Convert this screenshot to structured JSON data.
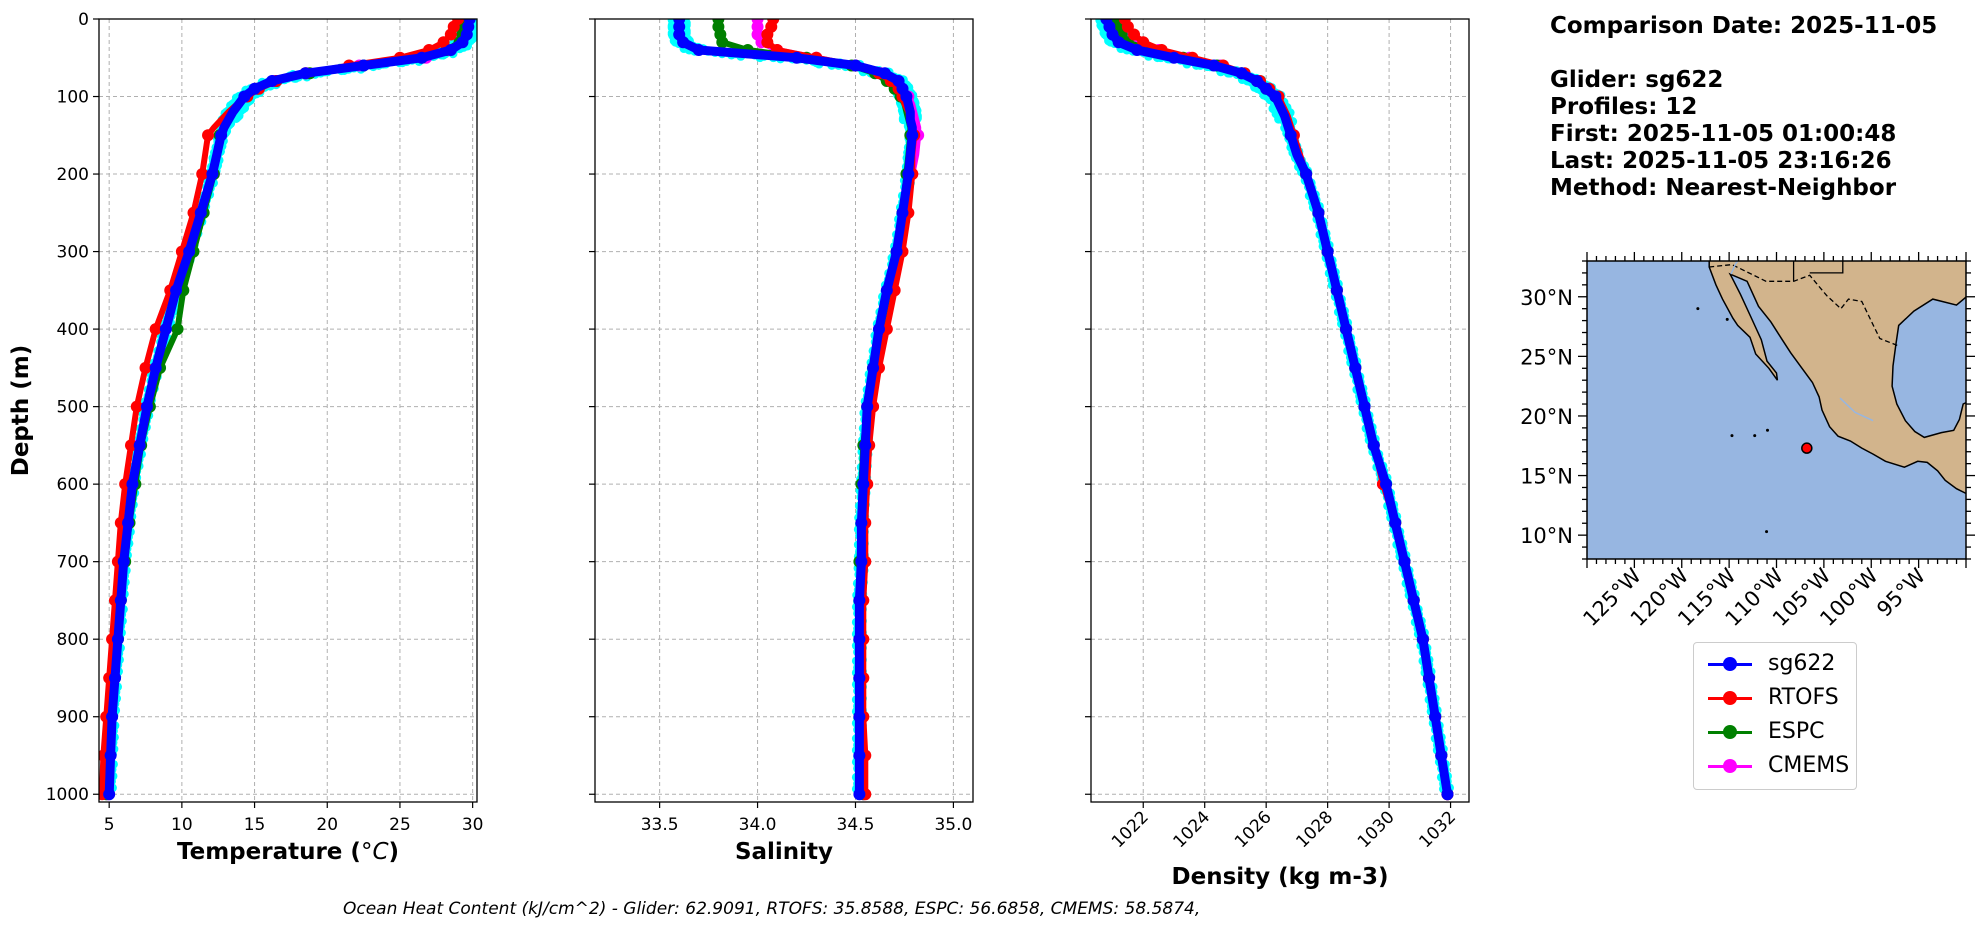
{
  "colors": {
    "sg622": "#0000ff",
    "RTOFS": "#ff0000",
    "ESPC": "#008000",
    "CMEMS": "#ff00ff",
    "glider_raw": "#00ffff",
    "ocean": "#97b6e1",
    "land": "#d2b48c"
  },
  "info": {
    "comparison": "Comparison Date: 2025-11-05",
    "glider": "Glider: sg622",
    "profiles": "Profiles: 12",
    "first": "First: 2025-11-05 01:00:48",
    "last": "Last: 2025-11-05 23:16:26",
    "method": "Method: Nearest-Neighbor"
  },
  "legend": [
    {
      "name": "sg622",
      "color": "#0000ff"
    },
    {
      "name": "RTOFS",
      "color": "#ff0000"
    },
    {
      "name": "ESPC",
      "color": "#008000"
    },
    {
      "name": "CMEMS",
      "color": "#ff00ff"
    }
  ],
  "footer": "Ocean Heat Content (kJ/cm^2) - Glider: 62.9091,  RTOFS: 35.8588,  ESPC: 56.6858,  CMEMS: 58.5874,",
  "chart_data": [
    {
      "type": "line",
      "xlabel": "Temperature",
      "xlabel_unit": "°C",
      "ylabel": "Depth (m)",
      "xlim": [
        4.3,
        30.3
      ],
      "ylim": [
        1010,
        0
      ],
      "xticks": [
        5,
        10,
        15,
        20,
        25,
        30
      ],
      "yticks": [
        0,
        100,
        200,
        300,
        400,
        500,
        600,
        700,
        800,
        900,
        1000
      ],
      "grid": true,
      "series": [
        {
          "name": "sg622",
          "depth": [
            0,
            10,
            20,
            30,
            40,
            50,
            60,
            70,
            80,
            90,
            100,
            110,
            120,
            130,
            140,
            150,
            175,
            200,
            250,
            300,
            350,
            400,
            450,
            500,
            550,
            600,
            650,
            700,
            750,
            800,
            850,
            900,
            950,
            1000
          ],
          "values": [
            29.8,
            29.7,
            29.6,
            29.3,
            28.5,
            26.5,
            22.5,
            18.5,
            16.2,
            15.0,
            14.3,
            13.9,
            13.5,
            13.2,
            12.9,
            12.7,
            12.4,
            12.1,
            11.3,
            10.5,
            9.6,
            8.9,
            8.2,
            7.6,
            7.1,
            6.6,
            6.3,
            6.0,
            5.8,
            5.6,
            5.4,
            5.2,
            5.1,
            5.0
          ]
        },
        {
          "name": "RTOFS",
          "depth": [
            0,
            10,
            20,
            30,
            40,
            50,
            60,
            70,
            80,
            90,
            100,
            110,
            120,
            130,
            140,
            150,
            175,
            200,
            250,
            300,
            350,
            400,
            450,
            500,
            550,
            600,
            650,
            700,
            750,
            800,
            850,
            900,
            950,
            1000
          ],
          "values": [
            29.0,
            28.7,
            28.5,
            28.0,
            27.0,
            25.0,
            21.5,
            18.5,
            16.5,
            15.3,
            14.5,
            13.8,
            13.2,
            12.7,
            12.2,
            11.8,
            11.6,
            11.4,
            10.8,
            10.0,
            9.2,
            8.2,
            7.5,
            6.9,
            6.5,
            6.1,
            5.8,
            5.6,
            5.4,
            5.2,
            5.0,
            4.8,
            4.6,
            4.5
          ]
        },
        {
          "name": "ESPC",
          "depth": [
            0,
            10,
            20,
            30,
            40,
            50,
            60,
            70,
            80,
            90,
            100,
            110,
            120,
            130,
            140,
            150,
            175,
            200,
            250,
            300,
            350,
            400,
            450,
            500,
            550,
            600,
            650,
            700,
            750,
            800,
            850,
            900,
            950,
            1000
          ],
          "values": [
            29.5,
            29.4,
            29.3,
            29.1,
            28.2,
            26.5,
            22.5,
            18.8,
            16.5,
            15.2,
            14.4,
            13.9,
            13.5,
            13.1,
            12.8,
            12.6,
            12.4,
            12.2,
            11.5,
            10.8,
            10.1,
            9.7,
            8.5,
            7.8,
            7.2,
            6.8,
            6.4,
            6.1,
            5.8,
            5.6,
            5.4,
            5.2,
            5.0,
            4.8
          ]
        },
        {
          "name": "CMEMS",
          "depth": [
            0,
            10,
            20,
            30,
            40,
            50,
            60,
            70,
            80,
            90,
            100,
            110,
            120,
            130,
            140,
            150,
            175,
            200,
            250,
            300,
            350,
            400,
            450,
            500,
            550,
            600,
            650,
            700,
            750,
            800,
            850,
            900,
            950,
            1000
          ],
          "values": [
            29.6,
            29.5,
            29.4,
            29.2,
            28.4,
            26.8,
            22.2,
            18.6,
            16.3,
            15.1,
            14.4,
            13.9,
            13.5,
            13.2,
            12.9,
            12.7,
            12.5,
            12.2,
            11.3,
            10.5,
            9.6,
            8.9,
            8.2,
            7.6,
            7.0,
            6.6,
            6.2,
            5.9,
            5.7,
            5.5,
            5.3,
            5.1,
            5.0,
            4.9
          ]
        }
      ]
    },
    {
      "type": "line",
      "xlabel": "Salinity",
      "xlim": [
        33.17,
        35.1
      ],
      "ylim": [
        1010,
        0
      ],
      "xticks": [
        33.5,
        34.0,
        34.5,
        35.0
      ],
      "xtick_labels": [
        "33.5",
        "34.0",
        "34.5",
        "35.0"
      ],
      "yticks": [
        0,
        100,
        200,
        300,
        400,
        500,
        600,
        700,
        800,
        900,
        1000
      ],
      "grid": true,
      "series": [
        {
          "name": "sg622",
          "depth": [
            0,
            10,
            20,
            30,
            40,
            50,
            60,
            70,
            80,
            90,
            100,
            110,
            120,
            130,
            140,
            150,
            175,
            200,
            250,
            300,
            350,
            400,
            450,
            500,
            550,
            600,
            650,
            700,
            750,
            800,
            850,
            900,
            950,
            1000
          ],
          "values": [
            33.6,
            33.6,
            33.6,
            33.62,
            33.7,
            34.2,
            34.5,
            34.65,
            34.72,
            34.74,
            34.76,
            34.77,
            34.78,
            34.78,
            34.79,
            34.79,
            34.78,
            34.77,
            34.74,
            34.71,
            34.66,
            34.62,
            34.59,
            34.56,
            34.55,
            34.54,
            34.53,
            34.53,
            34.52,
            34.52,
            34.52,
            34.52,
            34.52,
            34.52
          ]
        },
        {
          "name": "RTOFS",
          "depth": [
            0,
            10,
            20,
            30,
            40,
            50,
            60,
            70,
            80,
            90,
            100,
            110,
            120,
            130,
            140,
            150,
            175,
            200,
            250,
            300,
            350,
            400,
            450,
            500,
            550,
            600,
            650,
            700,
            750,
            800,
            850,
            900,
            950,
            1000
          ],
          "values": [
            34.08,
            34.07,
            34.05,
            34.05,
            34.1,
            34.3,
            34.5,
            34.62,
            34.68,
            34.72,
            34.74,
            34.75,
            34.77,
            34.78,
            34.79,
            34.8,
            34.79,
            34.79,
            34.77,
            34.74,
            34.7,
            34.66,
            34.62,
            34.59,
            34.57,
            34.56,
            34.55,
            34.55,
            34.54,
            34.54,
            34.54,
            34.54,
            34.55,
            34.55
          ]
        },
        {
          "name": "ESPC",
          "depth": [
            0,
            10,
            20,
            30,
            40,
            50,
            60,
            70,
            80,
            90,
            100,
            110,
            120,
            130,
            140,
            150,
            175,
            200,
            250,
            300,
            350,
            400,
            450,
            500,
            550,
            600,
            650,
            700,
            750,
            800,
            850,
            900,
            950,
            1000
          ],
          "values": [
            33.8,
            33.8,
            33.81,
            33.82,
            33.95,
            34.25,
            34.48,
            34.6,
            34.66,
            34.7,
            34.73,
            34.75,
            34.76,
            34.77,
            34.78,
            34.78,
            34.77,
            34.76,
            34.74,
            34.71,
            34.67,
            34.63,
            34.59,
            34.56,
            34.54,
            34.53,
            34.53,
            34.52,
            34.52,
            34.52,
            34.52,
            34.52,
            34.53,
            34.54
          ]
        },
        {
          "name": "CMEMS",
          "depth": [
            0,
            10,
            20,
            30,
            40,
            50,
            60,
            70,
            80,
            90,
            100,
            110,
            120,
            130,
            140,
            150,
            175,
            200,
            250,
            300,
            350,
            400,
            450,
            500,
            550,
            600,
            650,
            700,
            750,
            800,
            850,
            900,
            950,
            1000
          ],
          "values": [
            34.0,
            34.0,
            34.0,
            34.02,
            34.1,
            34.3,
            34.5,
            34.63,
            34.7,
            34.74,
            34.77,
            34.79,
            34.8,
            34.81,
            34.82,
            34.82,
            34.81,
            34.79,
            34.76,
            34.72,
            34.68,
            34.64,
            34.61,
            34.58,
            34.56,
            34.55,
            34.54,
            34.54,
            34.53,
            34.53,
            34.53,
            34.53,
            34.54,
            34.54
          ]
        }
      ]
    },
    {
      "type": "line",
      "xlabel": "Density (kg m-3)",
      "xlim": [
        1020.3,
        1032.6
      ],
      "ylim": [
        1010,
        0
      ],
      "xticks": [
        1022,
        1024,
        1026,
        1028,
        1030,
        1032
      ],
      "yticks": [
        0,
        100,
        200,
        300,
        400,
        500,
        600,
        700,
        800,
        900,
        1000
      ],
      "grid": true,
      "series": [
        {
          "name": "sg622",
          "depth": [
            0,
            10,
            20,
            30,
            40,
            50,
            60,
            70,
            80,
            90,
            100,
            125,
            150,
            175,
            200,
            250,
            300,
            350,
            400,
            450,
            500,
            550,
            600,
            650,
            700,
            750,
            800,
            850,
            900,
            950,
            1000
          ],
          "values": [
            1020.8,
            1020.9,
            1021.0,
            1021.2,
            1021.8,
            1023.0,
            1024.3,
            1025.2,
            1025.7,
            1026.0,
            1026.3,
            1026.6,
            1026.8,
            1027.0,
            1027.3,
            1027.7,
            1028.0,
            1028.3,
            1028.6,
            1028.9,
            1029.2,
            1029.5,
            1029.9,
            1030.2,
            1030.5,
            1030.8,
            1031.1,
            1031.3,
            1031.5,
            1031.7,
            1031.9
          ]
        },
        {
          "name": "RTOFS",
          "depth": [
            0,
            10,
            20,
            30,
            40,
            50,
            60,
            70,
            80,
            90,
            100,
            125,
            150,
            175,
            200,
            250,
            300,
            350,
            400,
            450,
            500,
            550,
            600,
            650,
            700,
            750,
            800,
            850,
            900,
            950,
            1000
          ],
          "values": [
            1021.4,
            1021.5,
            1021.7,
            1022.0,
            1022.6,
            1023.6,
            1024.6,
            1025.3,
            1025.8,
            1026.1,
            1026.4,
            1026.7,
            1026.9,
            1027.1,
            1027.3,
            1027.7,
            1028.0,
            1028.3,
            1028.6,
            1028.9,
            1029.2,
            1029.5,
            1029.8,
            1030.2,
            1030.5,
            1030.8,
            1031.1,
            1031.3,
            1031.5,
            1031.7,
            1031.9
          ]
        },
        {
          "name": "ESPC",
          "depth": [
            0,
            10,
            20,
            30,
            40,
            50,
            60,
            70,
            80,
            90,
            100,
            125,
            150,
            175,
            200,
            250,
            300,
            350,
            400,
            450,
            500,
            550,
            600,
            650,
            700,
            750,
            800,
            850,
            900,
            950,
            1000
          ],
          "values": [
            1021.1,
            1021.2,
            1021.3,
            1021.5,
            1022.2,
            1023.3,
            1024.4,
            1025.2,
            1025.7,
            1026.0,
            1026.3,
            1026.6,
            1026.8,
            1027.0,
            1027.3,
            1027.7,
            1028.0,
            1028.3,
            1028.6,
            1028.9,
            1029.2,
            1029.5,
            1029.9,
            1030.2,
            1030.5,
            1030.8,
            1031.1,
            1031.3,
            1031.5,
            1031.7,
            1031.9
          ]
        },
        {
          "name": "CMEMS",
          "depth": [
            0,
            10,
            20,
            30,
            40,
            50,
            60,
            70,
            80,
            90,
            100,
            125,
            150,
            175,
            200,
            250,
            300,
            350,
            400,
            450,
            500,
            550,
            600,
            650,
            700,
            750,
            800,
            850,
            900,
            950,
            1000
          ],
          "values": [
            1021.3,
            1021.4,
            1021.6,
            1021.9,
            1022.5,
            1023.5,
            1024.5,
            1025.2,
            1025.7,
            1026.1,
            1026.4,
            1026.7,
            1026.9,
            1027.1,
            1027.3,
            1027.7,
            1028.0,
            1028.3,
            1028.6,
            1028.9,
            1029.2,
            1029.5,
            1029.8,
            1030.2,
            1030.5,
            1030.8,
            1031.1,
            1031.3,
            1031.5,
            1031.7,
            1031.9
          ]
        }
      ]
    },
    {
      "type": "map",
      "lon_range": [
        -130,
        -90
      ],
      "lat_range": [
        8,
        33
      ],
      "lat_ticks": [
        {
          "v": 30,
          "label": "30°N"
        },
        {
          "v": 25,
          "label": "25°N"
        },
        {
          "v": 20,
          "label": "20°N"
        },
        {
          "v": 15,
          "label": "15°N"
        },
        {
          "v": 10,
          "label": "10°N"
        }
      ],
      "lon_ticks": [
        {
          "v": -125,
          "label": "125°W"
        },
        {
          "v": -120,
          "label": "120°W"
        },
        {
          "v": -115,
          "label": "115°W"
        },
        {
          "v": -110,
          "label": "110°W"
        },
        {
          "v": -105,
          "label": "105°W"
        },
        {
          "v": -100,
          "label": "100°W"
        },
        {
          "v": -95,
          "label": "95°W"
        }
      ],
      "glider_position": {
        "lon": -106.8,
        "lat": 17.3
      }
    }
  ]
}
